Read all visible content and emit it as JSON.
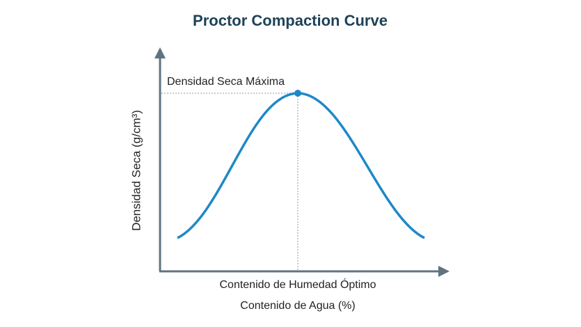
{
  "title": "Proctor Compaction Curve",
  "y_axis_label": "Densidad Seca (g/cm³)",
  "x_axis_label": "Contenido de Agua (%)",
  "annotations": {
    "peak_density": "Densidad Seca Máxima",
    "optimum_moisture": "Contenido de Humedad Óptimo"
  }
}
